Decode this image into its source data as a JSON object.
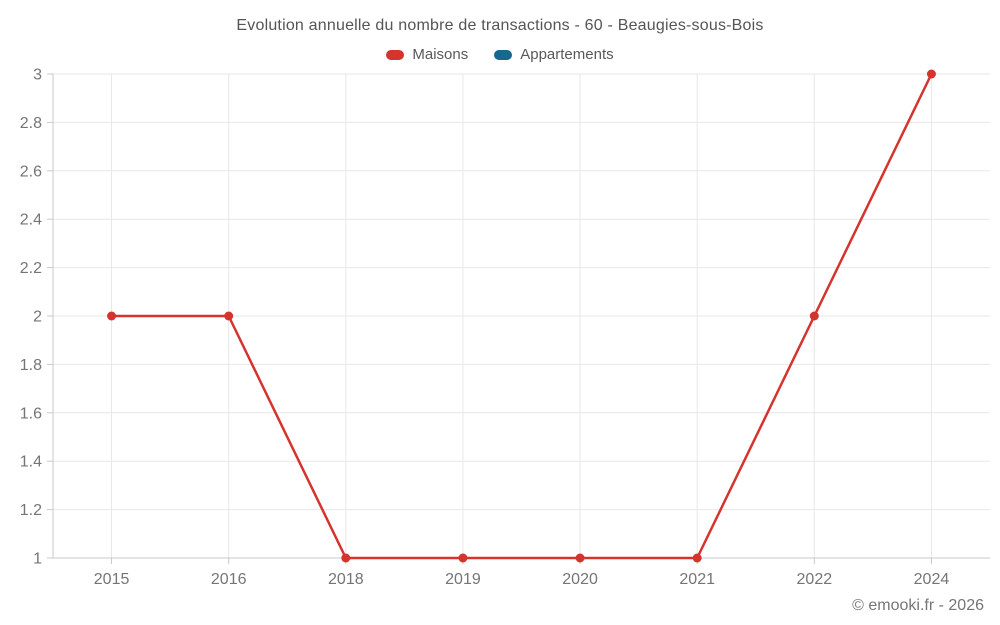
{
  "chart": {
    "title": "Evolution annuelle du nombre de transactions - 60 - Beaugies-sous-Bois",
    "watermark": "© emooki.fr - 2026"
  },
  "legend": {
    "items": [
      {
        "label": "Maisons",
        "color": "#d5342e"
      },
      {
        "label": "Appartements",
        "color": "#17688f"
      }
    ]
  },
  "chart_data": {
    "type": "line",
    "title": "Evolution annuelle du nombre de transactions - 60 - Beaugies-sous-Bois",
    "categories": [
      "2015",
      "2016",
      "2018",
      "2019",
      "2020",
      "2021",
      "2022",
      "2024"
    ],
    "series": [
      {
        "name": "Maisons",
        "color": "#d5342e",
        "values": [
          2,
          2,
          1,
          1,
          1,
          1,
          2,
          3
        ]
      },
      {
        "name": "Appartements",
        "color": "#17688f",
        "values": []
      }
    ],
    "xlabel": "",
    "ylabel": "",
    "ylim": [
      1,
      3
    ],
    "yticks": [
      3,
      2.8,
      2.6,
      2.4,
      2.2,
      2,
      1.8,
      1.6,
      1.4,
      1.2,
      1
    ],
    "ytick_labels": [
      "3",
      "2.8",
      "2.6",
      "2.4",
      "2.2",
      "2",
      "1.8",
      "1.6",
      "1.4",
      "1.2",
      "1"
    ],
    "grid": true,
    "legend_position": "top"
  },
  "colors": {
    "grid": "#e7e7e7",
    "axis": "#c9c9c9",
    "tick_text": "#757575"
  }
}
